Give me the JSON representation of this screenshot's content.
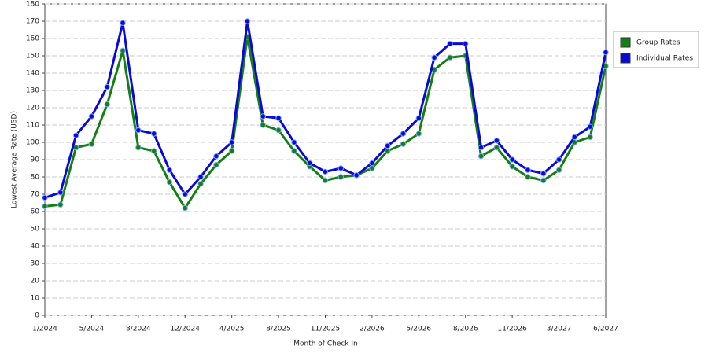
{
  "chart_data": {
    "type": "line",
    "x_label": "Month of Check In",
    "y_label": "Lowest Average Rate (USD)",
    "categories": [
      "1/2024",
      null,
      null,
      "5/2024",
      null,
      null,
      "8/2024",
      null,
      null,
      "12/2024",
      null,
      null,
      "4/2025",
      null,
      null,
      "8/2025",
      null,
      null,
      "11/2025",
      null,
      null,
      "2/2026",
      null,
      null,
      "5/2026",
      null,
      null,
      "8/2026",
      null,
      null,
      "11/2026",
      null,
      null,
      "3/2027",
      null,
      null,
      "6/2027"
    ],
    "series": [
      {
        "name": "Group Rates",
        "color": "#138013",
        "values": [
          63,
          64,
          97,
          99,
          122,
          153,
          97,
          95,
          77,
          62,
          76,
          87,
          95,
          161,
          110,
          107,
          95,
          86,
          78,
          80,
          81,
          85,
          95,
          99,
          105,
          142,
          149,
          150,
          92,
          97,
          86,
          80,
          78,
          84,
          100,
          103,
          144
        ]
      },
      {
        "name": "Individual Rates",
        "color": "#0a0ad8",
        "values": [
          68,
          71,
          104,
          115,
          132,
          169,
          107,
          105,
          84,
          70,
          80,
          92,
          100,
          170,
          115,
          114,
          100,
          88,
          83,
          85,
          81,
          88,
          98,
          105,
          114,
          149,
          157,
          157,
          97,
          101,
          90,
          84,
          82,
          90,
          103,
          109,
          152
        ]
      }
    ],
    "ylim": [
      0,
      180
    ],
    "yticks": [
      0,
      10,
      20,
      30,
      40,
      50,
      60,
      70,
      80,
      90,
      100,
      110,
      120,
      130,
      140,
      150,
      160,
      170,
      180
    ],
    "grid": true
  }
}
